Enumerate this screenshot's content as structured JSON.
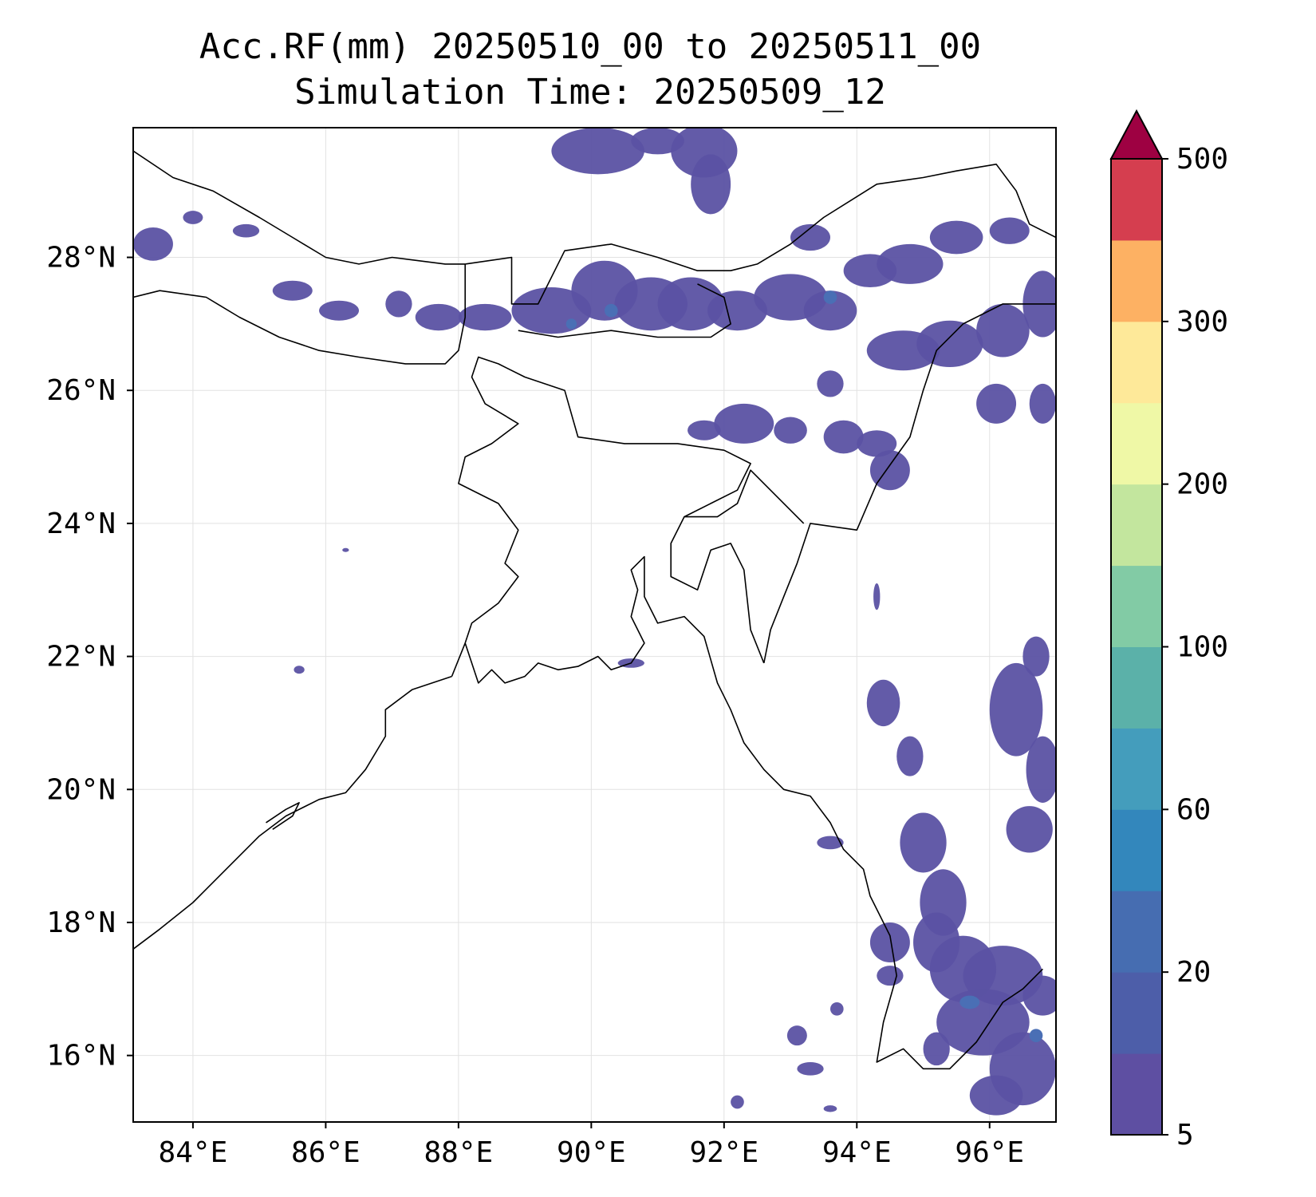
{
  "title": {
    "line1": "Acc.RF(mm) 20250510_00 to 20250511_00",
    "line2": "Simulation Time: 20250509_12"
  },
  "map": {
    "lon_range": [
      83.1,
      97.0
    ],
    "lat_range": [
      15.0,
      29.95
    ],
    "lon_ticks": [
      84,
      86,
      88,
      90,
      92,
      94,
      96
    ],
    "lat_ticks": [
      16,
      18,
      20,
      22,
      24,
      26,
      28
    ],
    "lon_tick_labels": [
      "84°E",
      "86°E",
      "88°E",
      "90°E",
      "92°E",
      "94°E",
      "96°E"
    ],
    "lat_tick_labels": [
      "16°N",
      "18°N",
      "20°N",
      "22°N",
      "24°N",
      "26°N",
      "28°N"
    ],
    "grid": true,
    "rain_color": "#5b52a3",
    "rain_color_heavy": "#4a6fb5",
    "coast_color": "#000000"
  },
  "colorbar": {
    "levels": [
      5,
      10,
      20,
      40,
      60,
      80,
      100,
      150,
      200,
      250,
      300,
      350,
      500
    ],
    "colors": [
      "#5e4fa2",
      "#4d5ea9",
      "#466db1",
      "#3387bc",
      "#449dbc",
      "#5bb1a9",
      "#82cba5",
      "#c3e69e",
      "#eff8a6",
      "#fee999",
      "#fdb163",
      "#d53e4f"
    ],
    "extend_color": "#9e0142",
    "tick_values": [
      5,
      20,
      60,
      100,
      200,
      300,
      500
    ],
    "tick_labels": [
      "5",
      "20",
      "60",
      "100",
      "200",
      "300",
      "500"
    ]
  }
}
